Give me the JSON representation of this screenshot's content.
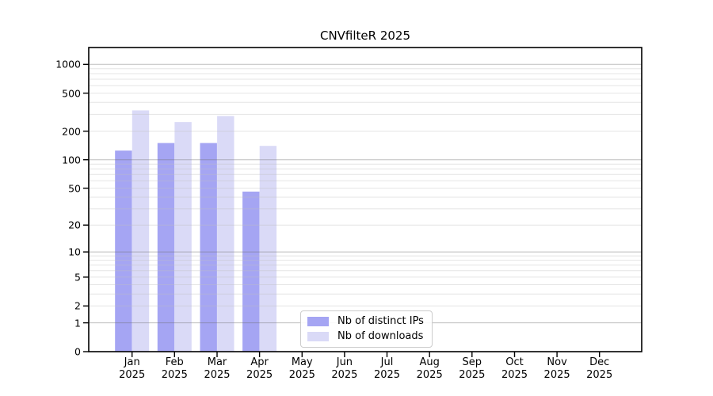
{
  "chart_data": {
    "type": "bar",
    "title": "CNVfilteR 2025",
    "categories": [
      "Jan",
      "Feb",
      "Mar",
      "Apr",
      "May",
      "Jun",
      "Jul",
      "Aug",
      "Sep",
      "Oct",
      "Nov",
      "Dec"
    ],
    "category_year": "2025",
    "series": [
      {
        "name": "Nb of distinct IPs",
        "color": "#a5a5f3",
        "values": [
          125,
          150,
          150,
          46,
          0,
          0,
          0,
          0,
          0,
          0,
          0,
          0
        ]
      },
      {
        "name": "Nb of downloads",
        "color": "#dadaf7",
        "values": [
          330,
          249,
          288,
          140,
          0,
          0,
          0,
          0,
          0,
          0,
          0,
          0
        ]
      }
    ],
    "yscale": "log1p",
    "ylim": [
      0,
      1500
    ],
    "yticks": [
      0,
      1,
      2,
      5,
      10,
      20,
      50,
      100,
      200,
      500,
      1000
    ],
    "major_gridlines": [
      1,
      10,
      100,
      1000
    ],
    "grid": "horizontal",
    "legend_position": "lower center",
    "colors": {
      "axis": "#000000",
      "text": "#000000",
      "major_grid": "#c3c3c3",
      "minor_grid": "#ececec",
      "legend_border": "#cccccc",
      "background": "#ffffff"
    }
  }
}
